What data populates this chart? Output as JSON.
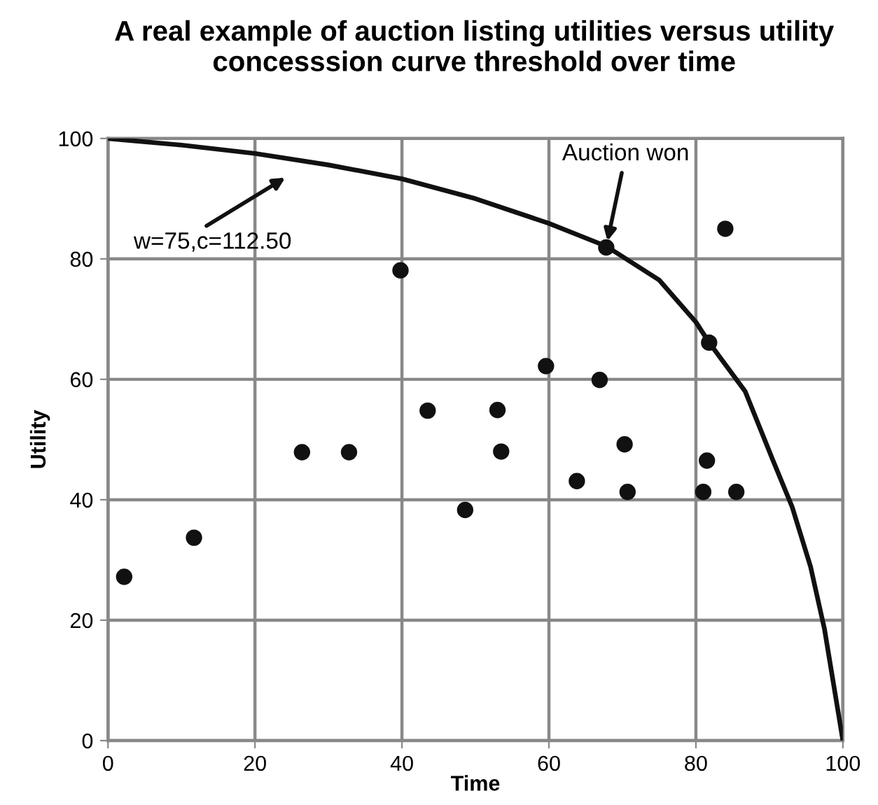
{
  "chart_data": {
    "type": "scatter",
    "title": "A real example of auction listing utilities versus utility concesssion curve threshold over time",
    "xlabel": "Time",
    "ylabel": "Utility",
    "xlim": [
      0,
      100
    ],
    "ylim": [
      0,
      100
    ],
    "xticks": [
      0,
      20,
      40,
      60,
      80,
      100
    ],
    "yticks": [
      0,
      20,
      40,
      60,
      80,
      100
    ],
    "grid": true,
    "series": [
      {
        "type": "line",
        "color": "#111111",
        "line_style": "solid",
        "marker": "none",
        "x": [
          0,
          10,
          20,
          30,
          40,
          50,
          60,
          67.8,
          75,
          80,
          81.8,
          86.7,
          90.5,
          93.1,
          95.6,
          97.5,
          100
        ],
        "values": [
          100,
          98.9,
          97.5,
          95.6,
          93.3,
          90,
          85.9,
          82.1,
          76.5,
          69.5,
          66.1,
          58,
          46.5,
          38.8,
          28.9,
          18.5,
          0
        ]
      },
      {
        "color": "#111111",
        "marker": "circle",
        "x": [
          2.2,
          11.7,
          26.4,
          32.8,
          39.8,
          43.5,
          53.0,
          53.5,
          48.6,
          59.6,
          66.9,
          63.8,
          70.3,
          70.7,
          67.8,
          84.0,
          81.8,
          81.5,
          81.0,
          85.5
        ],
        "values": [
          27.2,
          33.7,
          47.9,
          47.9,
          78.1,
          54.8,
          54.9,
          48.0,
          38.3,
          62.2,
          59.9,
          43.1,
          49.2,
          41.3,
          81.9,
          85.0,
          66.1,
          46.5,
          41.3,
          41.3
        ]
      }
    ],
    "annotations": [
      {
        "text": "Auction won",
        "x": 67.8,
        "y": 82
      },
      "w=75,c=112.50"
    ]
  }
}
